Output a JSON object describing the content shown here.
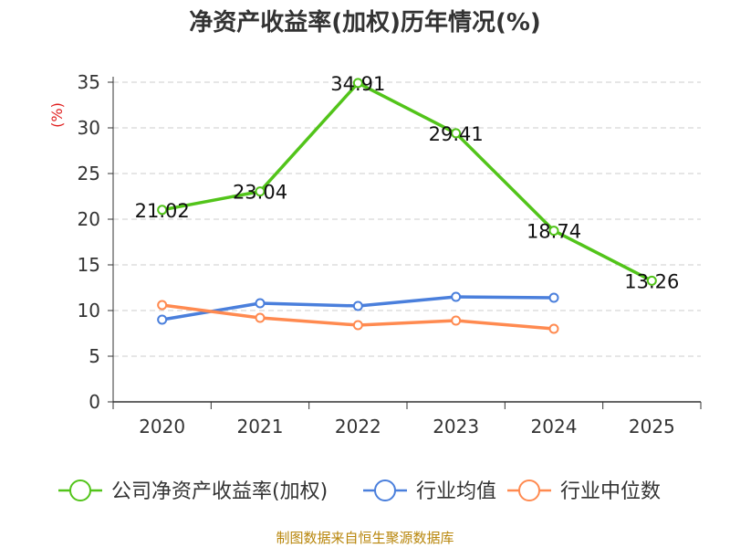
{
  "chart_data": {
    "type": "line",
    "title": "净资产收益率(加权)历年情况(%)",
    "ylabel": "(%)",
    "xlabel": "",
    "categories": [
      "2020",
      "2021",
      "2022",
      "2023",
      "2024",
      "2025"
    ],
    "ylim": [
      0,
      35
    ],
    "yticks": [
      0,
      5,
      10,
      15,
      20,
      25,
      30,
      35
    ],
    "grid": true,
    "legend_position": "bottom",
    "series": [
      {
        "name": "公司净资产收益率(加权)",
        "color": "#52c41a",
        "values": [
          21.02,
          23.04,
          34.91,
          29.41,
          18.74,
          13.26
        ],
        "labels": [
          "21.02",
          "23.04",
          "34.91",
          "29.41",
          "18.74",
          "13.26"
        ],
        "show_labels": true
      },
      {
        "name": "行业均值",
        "color": "#4a7fdc",
        "values": [
          9.0,
          10.8,
          10.5,
          11.5,
          11.4,
          null
        ],
        "show_labels": false
      },
      {
        "name": "行业中位数",
        "color": "#ff8a50",
        "values": [
          10.6,
          9.2,
          8.4,
          8.9,
          8.0,
          null
        ],
        "show_labels": false
      }
    ]
  },
  "source": "制图数据来自恒生聚源数据库"
}
